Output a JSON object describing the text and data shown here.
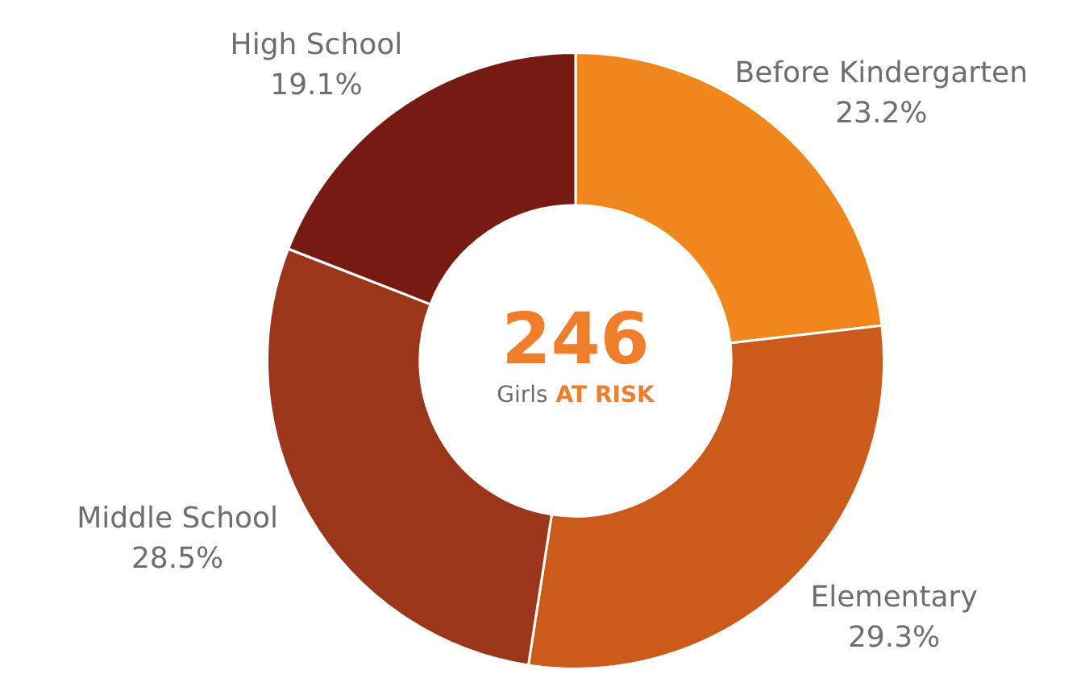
{
  "chart_data": {
    "type": "donut",
    "categories": [
      "Before Kindergarten",
      "Elementary",
      "Middle School",
      "High School"
    ],
    "values": [
      23.2,
      29.3,
      28.5,
      19.1
    ],
    "value_labels": [
      "23.2%",
      "29.3%",
      "28.5%",
      "19.1%"
    ],
    "colors": [
      "#f0861c",
      "#cc5a1a",
      "#9c361a",
      "#761a12"
    ],
    "annotations": [
      "246",
      "Girls",
      "AT RISK"
    ],
    "legend": false
  }
}
